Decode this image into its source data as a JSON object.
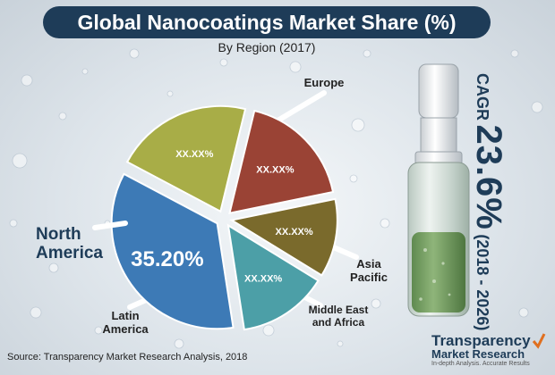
{
  "title": "Global Nanocoatings Market Share (%)",
  "subtitle": "By Region (2017)",
  "cagr": {
    "label": "CAGR",
    "value": "23.6%",
    "period": "(2018 - 2026)"
  },
  "source": "Source: Transparency Market Research Analysis, 2018",
  "logo": {
    "line1": "Transparency",
    "line2": "Market Research",
    "tagline": "In-depth Analysis. Accurate Results"
  },
  "colors": {
    "north_america": "#3d7ab6",
    "europe": "#a8ad47",
    "asia_pacific": "#9a4335",
    "middle_east_africa": "#7a6a2c",
    "latin_america": "#4c9fa7",
    "banner": "#1e3c58"
  },
  "chart_data": {
    "type": "pie",
    "title": "Global Nanocoatings Market Share (%)",
    "subtitle": "By Region (2017)",
    "slices": [
      {
        "name": "Europe",
        "label": "Europe",
        "value_label": "XX.XX%",
        "color": "#a8ad47",
        "share": 21
      },
      {
        "name": "Asia Pacific",
        "label": "Asia\nPacific",
        "value_label": "XX.XX%",
        "color": "#9a4335",
        "share": 18
      },
      {
        "name": "Middle East and Africa",
        "label": "Middle East\nand Africa",
        "value_label": "XX.XX%",
        "color": "#7a6a2c",
        "share": 12
      },
      {
        "name": "Latin America",
        "label": "Latin\nAmerica",
        "value_label": "XX.XX%",
        "color": "#4c9fa7",
        "share": 13.8
      },
      {
        "name": "North America",
        "label": "North\nAmerica",
        "value_label": "35.20%",
        "color": "#3d7ab6",
        "share": 35.2
      }
    ]
  }
}
